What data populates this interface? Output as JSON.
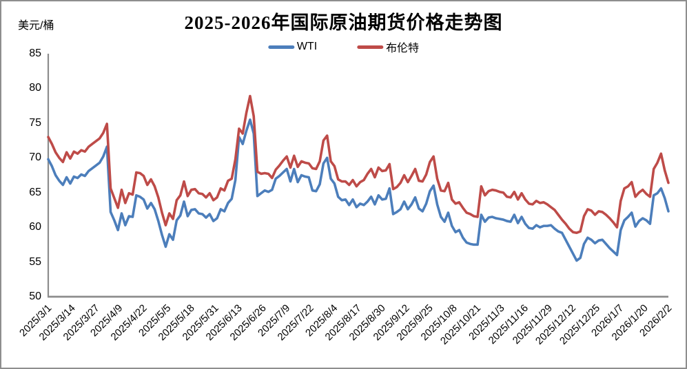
{
  "colors": {
    "wti_line": "#4C7EBB",
    "brent_line": "#BE4B48",
    "axis": "#8C8C8C",
    "frame_border": "#8E8E8E",
    "text": "#000000"
  },
  "chart_data": {
    "type": "line",
    "title": "2025-2026年国际原油期货价格走势图",
    "y_unit": "美元/桶",
    "ylim": [
      50,
      85
    ],
    "y_ticks": [
      85,
      80,
      75,
      70,
      65,
      60,
      55,
      50
    ],
    "grid": false,
    "legend_position": "top-center",
    "x_start": "2025/3/1",
    "x_end": "2026/2/2",
    "sample_interval_days": 2,
    "x_labels": [
      "2025/3/1",
      "2025/3/14",
      "2025/3/27",
      "2025/4/9",
      "2025/4/22",
      "2025/5/5",
      "2025/5/18",
      "2025/5/31",
      "2025/6/13",
      "2025/6/26",
      "2025/7/9",
      "2025/7/22",
      "2025/8/4",
      "2025/8/17",
      "2025/8/30",
      "2025/9/12",
      "2025/9/25",
      "2025/10/8",
      "2025/10/21",
      "2025/11/3",
      "2025/11/16",
      "2025/11/29",
      "2025/12/12",
      "2025/12/25",
      "2026/1/7",
      "2026/1/20",
      "2026/2/2"
    ],
    "series": [
      {
        "name": "WTI",
        "color": "#4C7EBB",
        "values": [
          69.8,
          68.8,
          67.5,
          66.7,
          66.1,
          67.2,
          66.3,
          67.3,
          67.1,
          67.6,
          67.4,
          68.1,
          68.5,
          68.9,
          69.3,
          70.2,
          71.6,
          62.2,
          61.0,
          59.6,
          62.0,
          60.3,
          61.6,
          61.5,
          64.6,
          64.4,
          64.0,
          62.7,
          63.5,
          62.6,
          60.9,
          58.9,
          57.2,
          59.0,
          58.2,
          61.0,
          61.7,
          63.7,
          61.6,
          62.5,
          62.6,
          62.0,
          61.9,
          61.4,
          61.9,
          60.9,
          61.3,
          62.6,
          62.3,
          63.5,
          64.1,
          66.8,
          73.0,
          72.0,
          73.9,
          75.5,
          73.5,
          64.5,
          64.9,
          65.3,
          65.1,
          65.4,
          67.0,
          67.4,
          67.9,
          68.4,
          66.6,
          68.4,
          66.5,
          67.5,
          67.3,
          67.2,
          65.3,
          65.2,
          66.2,
          69.2,
          70.0,
          67.0,
          66.3,
          64.4,
          63.9,
          64.0,
          63.2,
          64.0,
          62.9,
          63.4,
          63.2,
          63.7,
          64.4,
          63.3,
          64.6,
          64.0,
          64.1,
          65.6,
          61.9,
          62.2,
          62.6,
          63.7,
          62.6,
          63.3,
          64.3,
          62.7,
          62.3,
          63.4,
          65.2,
          66.0,
          63.3,
          61.5,
          60.8,
          62.1,
          60.2,
          59.3,
          59.6,
          58.5,
          57.8,
          57.6,
          57.5,
          57.5,
          61.8,
          60.8,
          61.4,
          61.5,
          61.3,
          61.2,
          61.1,
          60.9,
          60.8,
          61.8,
          60.6,
          61.5,
          60.5,
          59.9,
          59.8,
          60.3,
          60.0,
          60.2,
          60.2,
          60.3,
          59.8,
          59.4,
          59.2,
          58.2,
          57.2,
          56.2,
          55.2,
          55.6,
          57.6,
          58.5,
          58.2,
          57.7,
          58.1,
          58.2,
          57.6,
          57.0,
          56.5,
          56.0,
          59.6,
          61.0,
          61.5,
          62.1,
          60.1,
          60.9,
          61.3,
          61.0,
          60.5,
          64.6,
          64.9,
          65.6,
          64.2,
          62.3
        ]
      },
      {
        "name": "布伦特",
        "color": "#BE4B48",
        "values": [
          73.0,
          72.0,
          70.8,
          70.0,
          69.4,
          70.8,
          69.9,
          70.9,
          70.6,
          71.1,
          70.9,
          71.6,
          72.0,
          72.4,
          72.8,
          73.6,
          74.9,
          65.6,
          64.2,
          62.8,
          65.4,
          63.5,
          64.9,
          64.7,
          67.9,
          67.8,
          67.4,
          66.1,
          66.9,
          65.9,
          64.3,
          62.1,
          60.3,
          62.0,
          61.2,
          63.9,
          64.6,
          66.6,
          64.5,
          65.4,
          65.5,
          64.9,
          64.8,
          64.3,
          64.9,
          63.9,
          64.3,
          65.6,
          65.3,
          66.7,
          67.0,
          69.8,
          74.2,
          73.5,
          76.5,
          78.9,
          76.0,
          68.0,
          67.7,
          67.8,
          67.7,
          67.1,
          68.3,
          68.9,
          69.6,
          70.2,
          68.6,
          70.3,
          68.7,
          69.5,
          69.3,
          69.2,
          68.5,
          68.4,
          69.5,
          72.5,
          73.2,
          69.5,
          68.8,
          66.9,
          66.6,
          66.6,
          66.1,
          66.8,
          65.9,
          66.5,
          66.8,
          67.7,
          68.4,
          67.2,
          68.6,
          68.1,
          68.2,
          69.1,
          65.5,
          65.8,
          66.4,
          67.5,
          66.5,
          67.4,
          68.4,
          66.7,
          66.6,
          67.6,
          69.4,
          70.2,
          67.0,
          65.3,
          65.2,
          66.4,
          64.0,
          63.4,
          63.6,
          62.8,
          62.1,
          61.9,
          61.6,
          61.5,
          65.9,
          64.6,
          65.2,
          65.4,
          65.3,
          65.1,
          65.0,
          64.4,
          64.3,
          65.1,
          64.0,
          64.9,
          64.0,
          63.4,
          63.3,
          63.8,
          63.5,
          63.6,
          63.3,
          62.9,
          62.5,
          61.8,
          61.1,
          60.5,
          59.8,
          59.3,
          59.2,
          59.4,
          61.6,
          62.6,
          62.4,
          61.8,
          62.3,
          62.2,
          61.8,
          61.3,
          60.7,
          60.0,
          63.8,
          65.6,
          65.9,
          66.5,
          64.4,
          65.0,
          65.4,
          64.8,
          64.4,
          68.4,
          69.3,
          70.6,
          68.2,
          66.4
        ]
      }
    ]
  }
}
